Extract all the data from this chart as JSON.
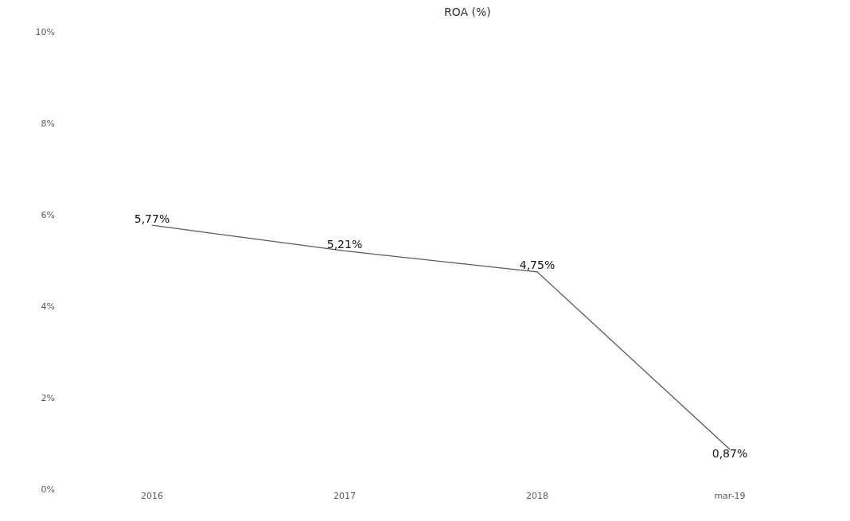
{
  "chart_data": {
    "type": "line",
    "title": "ROA (%)",
    "categories": [
      "2016",
      "2017",
      "2018",
      "mar-19"
    ],
    "series": [
      {
        "color": "#595959",
        "values": [
          5.77,
          5.21,
          4.75,
          0.87
        ],
        "value_labels": [
          "5,77%",
          "5,21%",
          "4,75%",
          "0,87%"
        ]
      }
    ],
    "ylim": [
      0,
      10
    ],
    "yticks": [
      {
        "value": 0,
        "label": "0%"
      },
      {
        "value": 2,
        "label": "2%"
      },
      {
        "value": 4,
        "label": "4%"
      },
      {
        "value": 6,
        "label": "6%"
      },
      {
        "value": 8,
        "label": "8%"
      },
      {
        "value": 10,
        "label": "10%"
      }
    ],
    "marker": "none",
    "line_style": "solid"
  }
}
